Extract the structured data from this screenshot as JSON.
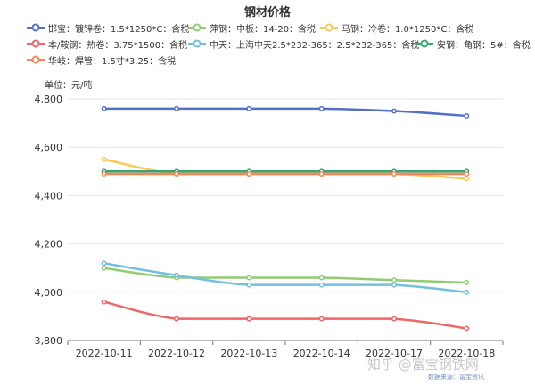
{
  "chart_data": {
    "type": "line",
    "title": "钢材价格",
    "unit_label": "单位：元/吨",
    "categories": [
      "2022-10-11",
      "2022-10-12",
      "2022-10-13",
      "2022-10-14",
      "2022-10-17",
      "2022-10-18"
    ],
    "ylim": [
      3800,
      4800
    ],
    "yticks": [
      3800,
      4000,
      4200,
      4400,
      4600,
      4800
    ],
    "ytick_labels": [
      "3,800",
      "4,000",
      "4,200",
      "4,400",
      "4,600",
      "4,800"
    ],
    "grid": true,
    "legend_placement": "top",
    "series": [
      {
        "name": "邯宝：镀锌卷：1.5*1250*C：含税",
        "color": "#5470c6",
        "values": [
          4760,
          4760,
          4760,
          4760,
          4750,
          4730
        ]
      },
      {
        "name": "萍钢：中板：14-20：含税",
        "color": "#91cc75",
        "values": [
          4100,
          4060,
          4060,
          4060,
          4050,
          4040
        ]
      },
      {
        "name": "马钢：冷卷：1.0*1250*C：含税",
        "color": "#fac858",
        "values": [
          4550,
          4490,
          4490,
          4490,
          4490,
          4470
        ]
      },
      {
        "name": "本/鞍钢：热卷：3.75*1500：含税",
        "color": "#ee6666",
        "values": [
          3960,
          3890,
          3890,
          3890,
          3890,
          3850
        ]
      },
      {
        "name": "中天：上海中天2.5*232-365：2.5*232-365：含税",
        "color": "#73c0de",
        "values": [
          4120,
          4070,
          4030,
          4030,
          4030,
          4000
        ]
      },
      {
        "name": "安钢：角钢：5#：含税",
        "color": "#3ba272",
        "values": [
          4500,
          4500,
          4500,
          4500,
          4500,
          4500
        ]
      },
      {
        "name": "华岐：焊管：1.5寸*3.25：含税",
        "color": "#fc8452",
        "values": [
          4490,
          4490,
          4490,
          4490,
          4490,
          4490
        ]
      }
    ]
  },
  "watermark": "知乎 @富宝钢铁网",
  "source_note": "数据来源：富宝资讯"
}
